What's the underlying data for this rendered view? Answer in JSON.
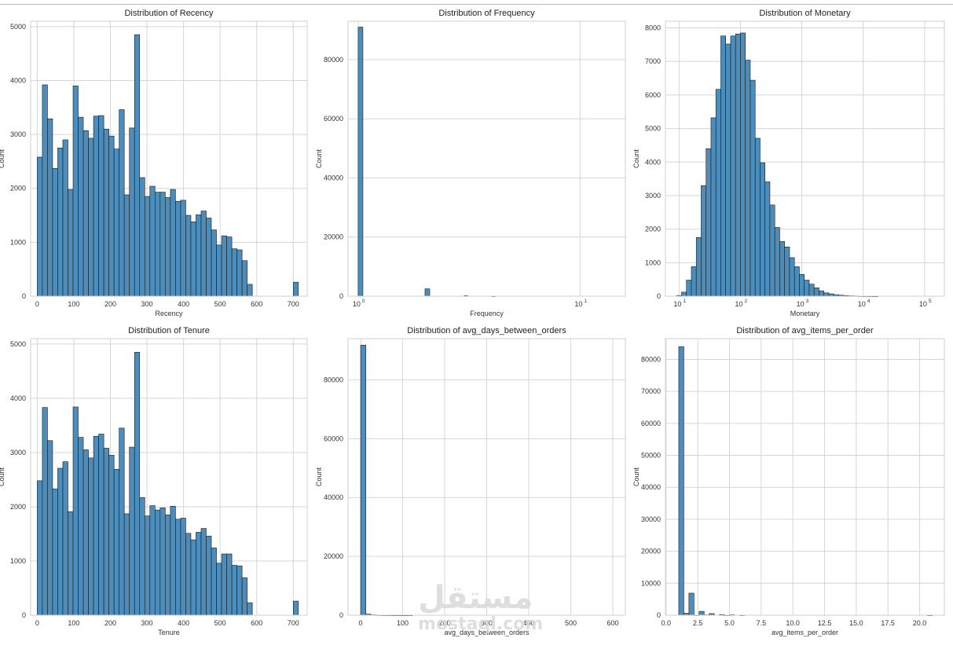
{
  "watermark": {
    "arabic": "مستقل",
    "latin": "mostaql.com"
  },
  "chart_data": [
    {
      "id": "recency",
      "type": "bar",
      "title": "Distribution of Recency",
      "xlabel": "Recency",
      "ylabel": "Count",
      "x_scale": "linear",
      "xlim": [
        -18,
        738
      ],
      "ylim": [
        0,
        5100
      ],
      "xticks": [
        0,
        100,
        200,
        300,
        400,
        500,
        600,
        700
      ],
      "yticks": [
        0,
        1000,
        2000,
        3000,
        4000,
        5000
      ],
      "bin_edges": [
        0,
        14,
        28,
        42,
        56,
        70,
        84,
        98,
        112,
        126,
        140,
        154,
        168,
        182,
        196,
        210,
        224,
        238,
        252,
        266,
        280,
        294,
        308,
        322,
        336,
        350,
        364,
        378,
        392,
        406,
        420,
        434,
        448,
        462,
        476,
        490,
        504,
        518,
        532,
        546,
        560,
        574,
        588,
        602,
        616,
        630,
        644,
        658,
        672,
        686,
        700,
        714
      ],
      "values": [
        2580,
        3920,
        3290,
        2370,
        2750,
        2900,
        1980,
        3900,
        3320,
        3070,
        2930,
        3340,
        3350,
        3100,
        2970,
        2730,
        3460,
        1880,
        3120,
        4850,
        2200,
        1850,
        2040,
        1930,
        1930,
        1830,
        1980,
        1760,
        1780,
        1500,
        1380,
        1510,
        1580,
        1450,
        1230,
        950,
        1120,
        1100,
        880,
        860,
        660,
        220,
        0,
        0,
        0,
        0,
        0,
        0,
        0,
        0,
        260
      ]
    },
    {
      "id": "frequency",
      "type": "bar",
      "title": "Distribution of Frequency",
      "xlabel": "Frequency",
      "ylabel": "Count",
      "x_scale": "log",
      "xlim": [
        0.9,
        16
      ],
      "ylim": [
        0,
        93000
      ],
      "xticks": [
        1,
        10
      ],
      "yticks": [
        0,
        20000,
        40000,
        60000,
        80000
      ],
      "bars": [
        {
          "x0": 1.0,
          "x1": 1.05,
          "value": 91000
        },
        {
          "x0": 2.0,
          "x1": 2.1,
          "value": 2500
        },
        {
          "x0": 3.0,
          "x1": 3.12,
          "value": 200
        },
        {
          "x0": 4.0,
          "x1": 4.15,
          "value": 30
        }
      ]
    },
    {
      "id": "monetary",
      "type": "bar",
      "title": "Distribution of Monetary",
      "xlabel": "Monetary",
      "ylabel": "Count",
      "x_scale": "log",
      "xlim": [
        6,
        210000
      ],
      "ylim": [
        0,
        8200
      ],
      "xticks": [
        10,
        100,
        1000,
        10000,
        100000
      ],
      "yticks": [
        0,
        1000,
        2000,
        3000,
        4000,
        5000,
        6000,
        7000,
        8000
      ],
      "log_bin_start": 0.96,
      "log_bin_width": 0.08,
      "values": [
        20,
        120,
        480,
        880,
        1750,
        3300,
        4400,
        5320,
        6170,
        7760,
        7520,
        7760,
        7820,
        7850,
        7040,
        6440,
        4710,
        3980,
        3410,
        2720,
        2050,
        1630,
        1470,
        1150,
        880,
        650,
        480,
        360,
        250,
        160,
        100,
        70,
        45,
        30,
        20,
        12,
        8,
        5,
        3,
        2,
        1,
        0,
        0,
        0,
        0,
        0,
        0,
        0,
        0,
        0
      ]
    },
    {
      "id": "tenure",
      "type": "bar",
      "title": "Distribution of Tenure",
      "xlabel": "Tenure",
      "ylabel": "Count",
      "x_scale": "linear",
      "xlim": [
        -18,
        738
      ],
      "ylim": [
        0,
        5100
      ],
      "xticks": [
        0,
        100,
        200,
        300,
        400,
        500,
        600,
        700
      ],
      "yticks": [
        0,
        1000,
        2000,
        3000,
        4000,
        5000
      ],
      "bin_edges": [
        0,
        14,
        28,
        42,
        56,
        70,
        84,
        98,
        112,
        126,
        140,
        154,
        168,
        182,
        196,
        210,
        224,
        238,
        252,
        266,
        280,
        294,
        308,
        322,
        336,
        350,
        364,
        378,
        392,
        406,
        420,
        434,
        448,
        462,
        476,
        490,
        504,
        518,
        532,
        546,
        560,
        574,
        588,
        602,
        616,
        630,
        644,
        658,
        672,
        686,
        700,
        714
      ],
      "values": [
        2480,
        3830,
        3220,
        2330,
        2710,
        2830,
        1910,
        3840,
        3280,
        3050,
        2900,
        3300,
        3340,
        3080,
        2950,
        2690,
        3450,
        1870,
        3100,
        4850,
        2170,
        1830,
        2020,
        1940,
        1980,
        1850,
        2010,
        1770,
        1790,
        1510,
        1390,
        1530,
        1600,
        1460,
        1240,
        960,
        1130,
        1130,
        920,
        910,
        690,
        230,
        0,
        0,
        0,
        0,
        0,
        0,
        0,
        0,
        260
      ]
    },
    {
      "id": "avg_days",
      "type": "bar",
      "title": "Distribution of avg_days_between_orders",
      "xlabel": "avg_days_between_orders",
      "ylabel": "Count",
      "x_scale": "linear",
      "xlim": [
        -30,
        630
      ],
      "ylim": [
        0,
        94000
      ],
      "xticks": [
        0,
        100,
        200,
        300,
        400,
        500,
        600
      ],
      "yticks": [
        0,
        20000,
        40000,
        60000,
        80000
      ],
      "bin_width": 12.3,
      "values": [
        91800,
        350,
        120,
        60,
        30,
        20,
        10,
        5,
        3,
        2
      ]
    },
    {
      "id": "avg_items",
      "type": "bar",
      "title": "Distribution of avg_items_per_order",
      "xlabel": "avg_items_per_order",
      "ylabel": "Count",
      "x_scale": "linear",
      "xlim": [
        -0.05,
        21.95
      ],
      "ylim": [
        0,
        86500
      ],
      "xticks": [
        0,
        2.5,
        5,
        7.5,
        10,
        12.5,
        15,
        17.5,
        20
      ],
      "xtick_labels": [
        "0.0",
        "2.5",
        "5.0",
        "7.5",
        "10.0",
        "12.5",
        "15.0",
        "17.5",
        "20.0"
      ],
      "yticks": [
        0,
        10000,
        20000,
        30000,
        40000,
        50000,
        60000,
        70000,
        80000
      ],
      "bin_start": 1.0,
      "bin_width": 0.4,
      "values": [
        84000,
        600,
        6900,
        50,
        1200,
        100,
        500,
        0,
        200,
        30,
        150,
        0,
        30,
        0,
        0,
        0,
        0,
        0,
        0,
        0,
        0,
        0,
        0,
        0,
        0,
        0,
        0,
        0,
        0,
        0,
        0,
        0,
        0,
        0,
        0,
        0,
        0,
        0,
        0,
        0,
        0,
        0,
        0,
        0,
        0,
        0,
        0,
        0,
        0,
        20
      ]
    }
  ]
}
